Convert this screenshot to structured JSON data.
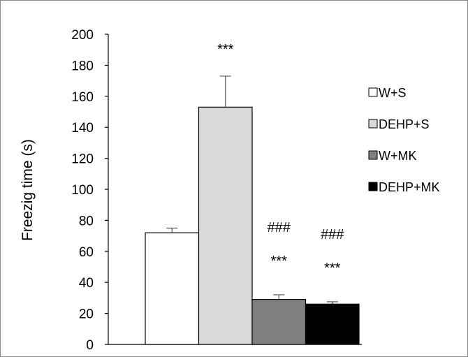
{
  "chart_data": {
    "type": "bar",
    "ylabel": "Freezig time (s)",
    "xlabel": "",
    "ylim": [
      0,
      200
    ],
    "yticks": [
      0,
      20,
      40,
      60,
      80,
      100,
      120,
      140,
      160,
      180,
      200
    ],
    "grid": false,
    "legend_position": "right",
    "series": [
      {
        "name": "W+S",
        "value": 72,
        "error": 3,
        "color": "#ffffff",
        "annotations": []
      },
      {
        "name": "DEHP+S",
        "value": 153,
        "error": 20,
        "color": "#d9d9d9",
        "annotations": [
          "***"
        ]
      },
      {
        "name": "W+MK",
        "value": 29,
        "error": 3,
        "color": "#808080",
        "annotations": [
          "***",
          "###"
        ]
      },
      {
        "name": "DEHP+MK",
        "value": 26,
        "error": 1.5,
        "color": "#000000",
        "annotations": [
          "***",
          "###"
        ]
      }
    ]
  }
}
